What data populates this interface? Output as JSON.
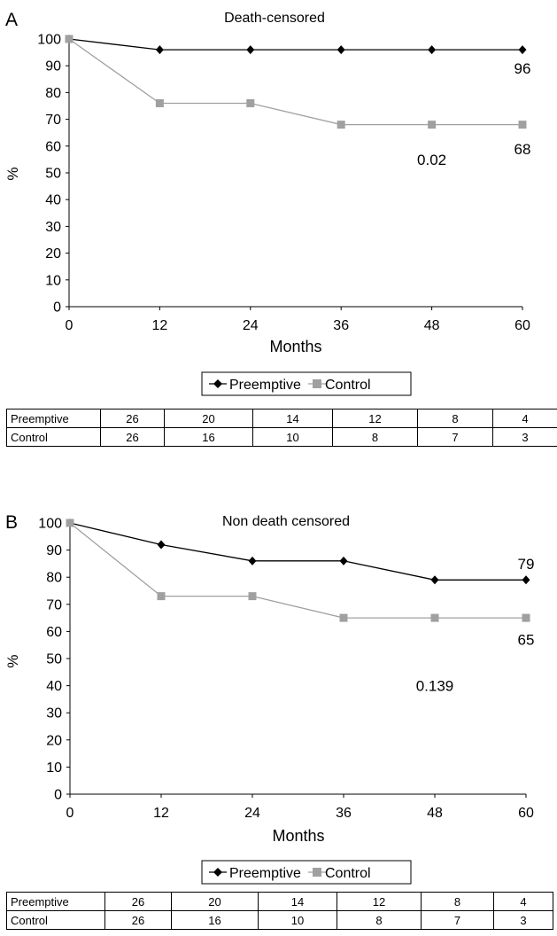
{
  "chart_data": [
    {
      "type": "line",
      "panel_label": "A",
      "title": "Death-censored",
      "xlabel": "Months",
      "ylabel": "%",
      "x": [
        0,
        12,
        24,
        36,
        48,
        60
      ],
      "x_ticks": [
        "0",
        "12",
        "24",
        "36",
        "48",
        "60"
      ],
      "y_ticks": [
        "0",
        "10",
        "20",
        "30",
        "40",
        "50",
        "60",
        "70",
        "80",
        "90",
        "100"
      ],
      "xlim": [
        0,
        60
      ],
      "ylim": [
        0,
        100
      ],
      "series": [
        {
          "name": "Preemptive",
          "values": [
            100,
            96,
            96,
            96,
            96,
            96
          ],
          "color": "#000000",
          "marker": "diamond"
        },
        {
          "name": "Control",
          "values": [
            100,
            76,
            76,
            68,
            68,
            68
          ],
          "color": "#a0a0a0",
          "marker": "square"
        }
      ],
      "annotations": [
        {
          "text": "96",
          "x": 60,
          "y": 89
        },
        {
          "text": "68",
          "x": 60,
          "y": 59
        },
        {
          "text": "0.02",
          "x": 48,
          "y": 55
        }
      ],
      "legend": [
        "Preemptive",
        "Control"
      ],
      "legend_position": "bottom",
      "risk_table": [
        {
          "label": "Preemptive",
          "values": [
            "26",
            "20",
            "14",
            "12",
            "8",
            "4"
          ]
        },
        {
          "label": "Control",
          "values": [
            "26",
            "16",
            "10",
            "8",
            "7",
            "3"
          ]
        }
      ]
    },
    {
      "type": "line",
      "panel_label": "B",
      "title": "Non death censored",
      "xlabel": "Months",
      "ylabel": "%",
      "x": [
        0,
        12,
        24,
        36,
        48,
        60
      ],
      "x_ticks": [
        "0",
        "12",
        "24",
        "36",
        "48",
        "60"
      ],
      "y_ticks": [
        "0",
        "10",
        "20",
        "30",
        "40",
        "50",
        "60",
        "70",
        "80",
        "90",
        "100"
      ],
      "xlim": [
        0,
        60
      ],
      "ylim": [
        0,
        100
      ],
      "series": [
        {
          "name": "Preemptive",
          "values": [
            100,
            92,
            86,
            86,
            79,
            79
          ],
          "color": "#000000",
          "marker": "diamond"
        },
        {
          "name": "Control",
          "values": [
            100,
            73,
            73,
            65,
            65,
            65
          ],
          "color": "#a0a0a0",
          "marker": "square"
        }
      ],
      "annotations": [
        {
          "text": "79",
          "x": 60,
          "y": 85
        },
        {
          "text": "65",
          "x": 60,
          "y": 57
        },
        {
          "text": "0.139",
          "x": 48,
          "y": 40
        }
      ],
      "legend": [
        "Preemptive",
        "Control"
      ],
      "legend_position": "bottom",
      "risk_table": [
        {
          "label": "Preemptive",
          "values": [
            "26",
            "20",
            "14",
            "12",
            "8",
            "4"
          ]
        },
        {
          "label": "Control",
          "values": [
            "26",
            "16",
            "10",
            "8",
            "7",
            "3"
          ]
        }
      ]
    }
  ]
}
